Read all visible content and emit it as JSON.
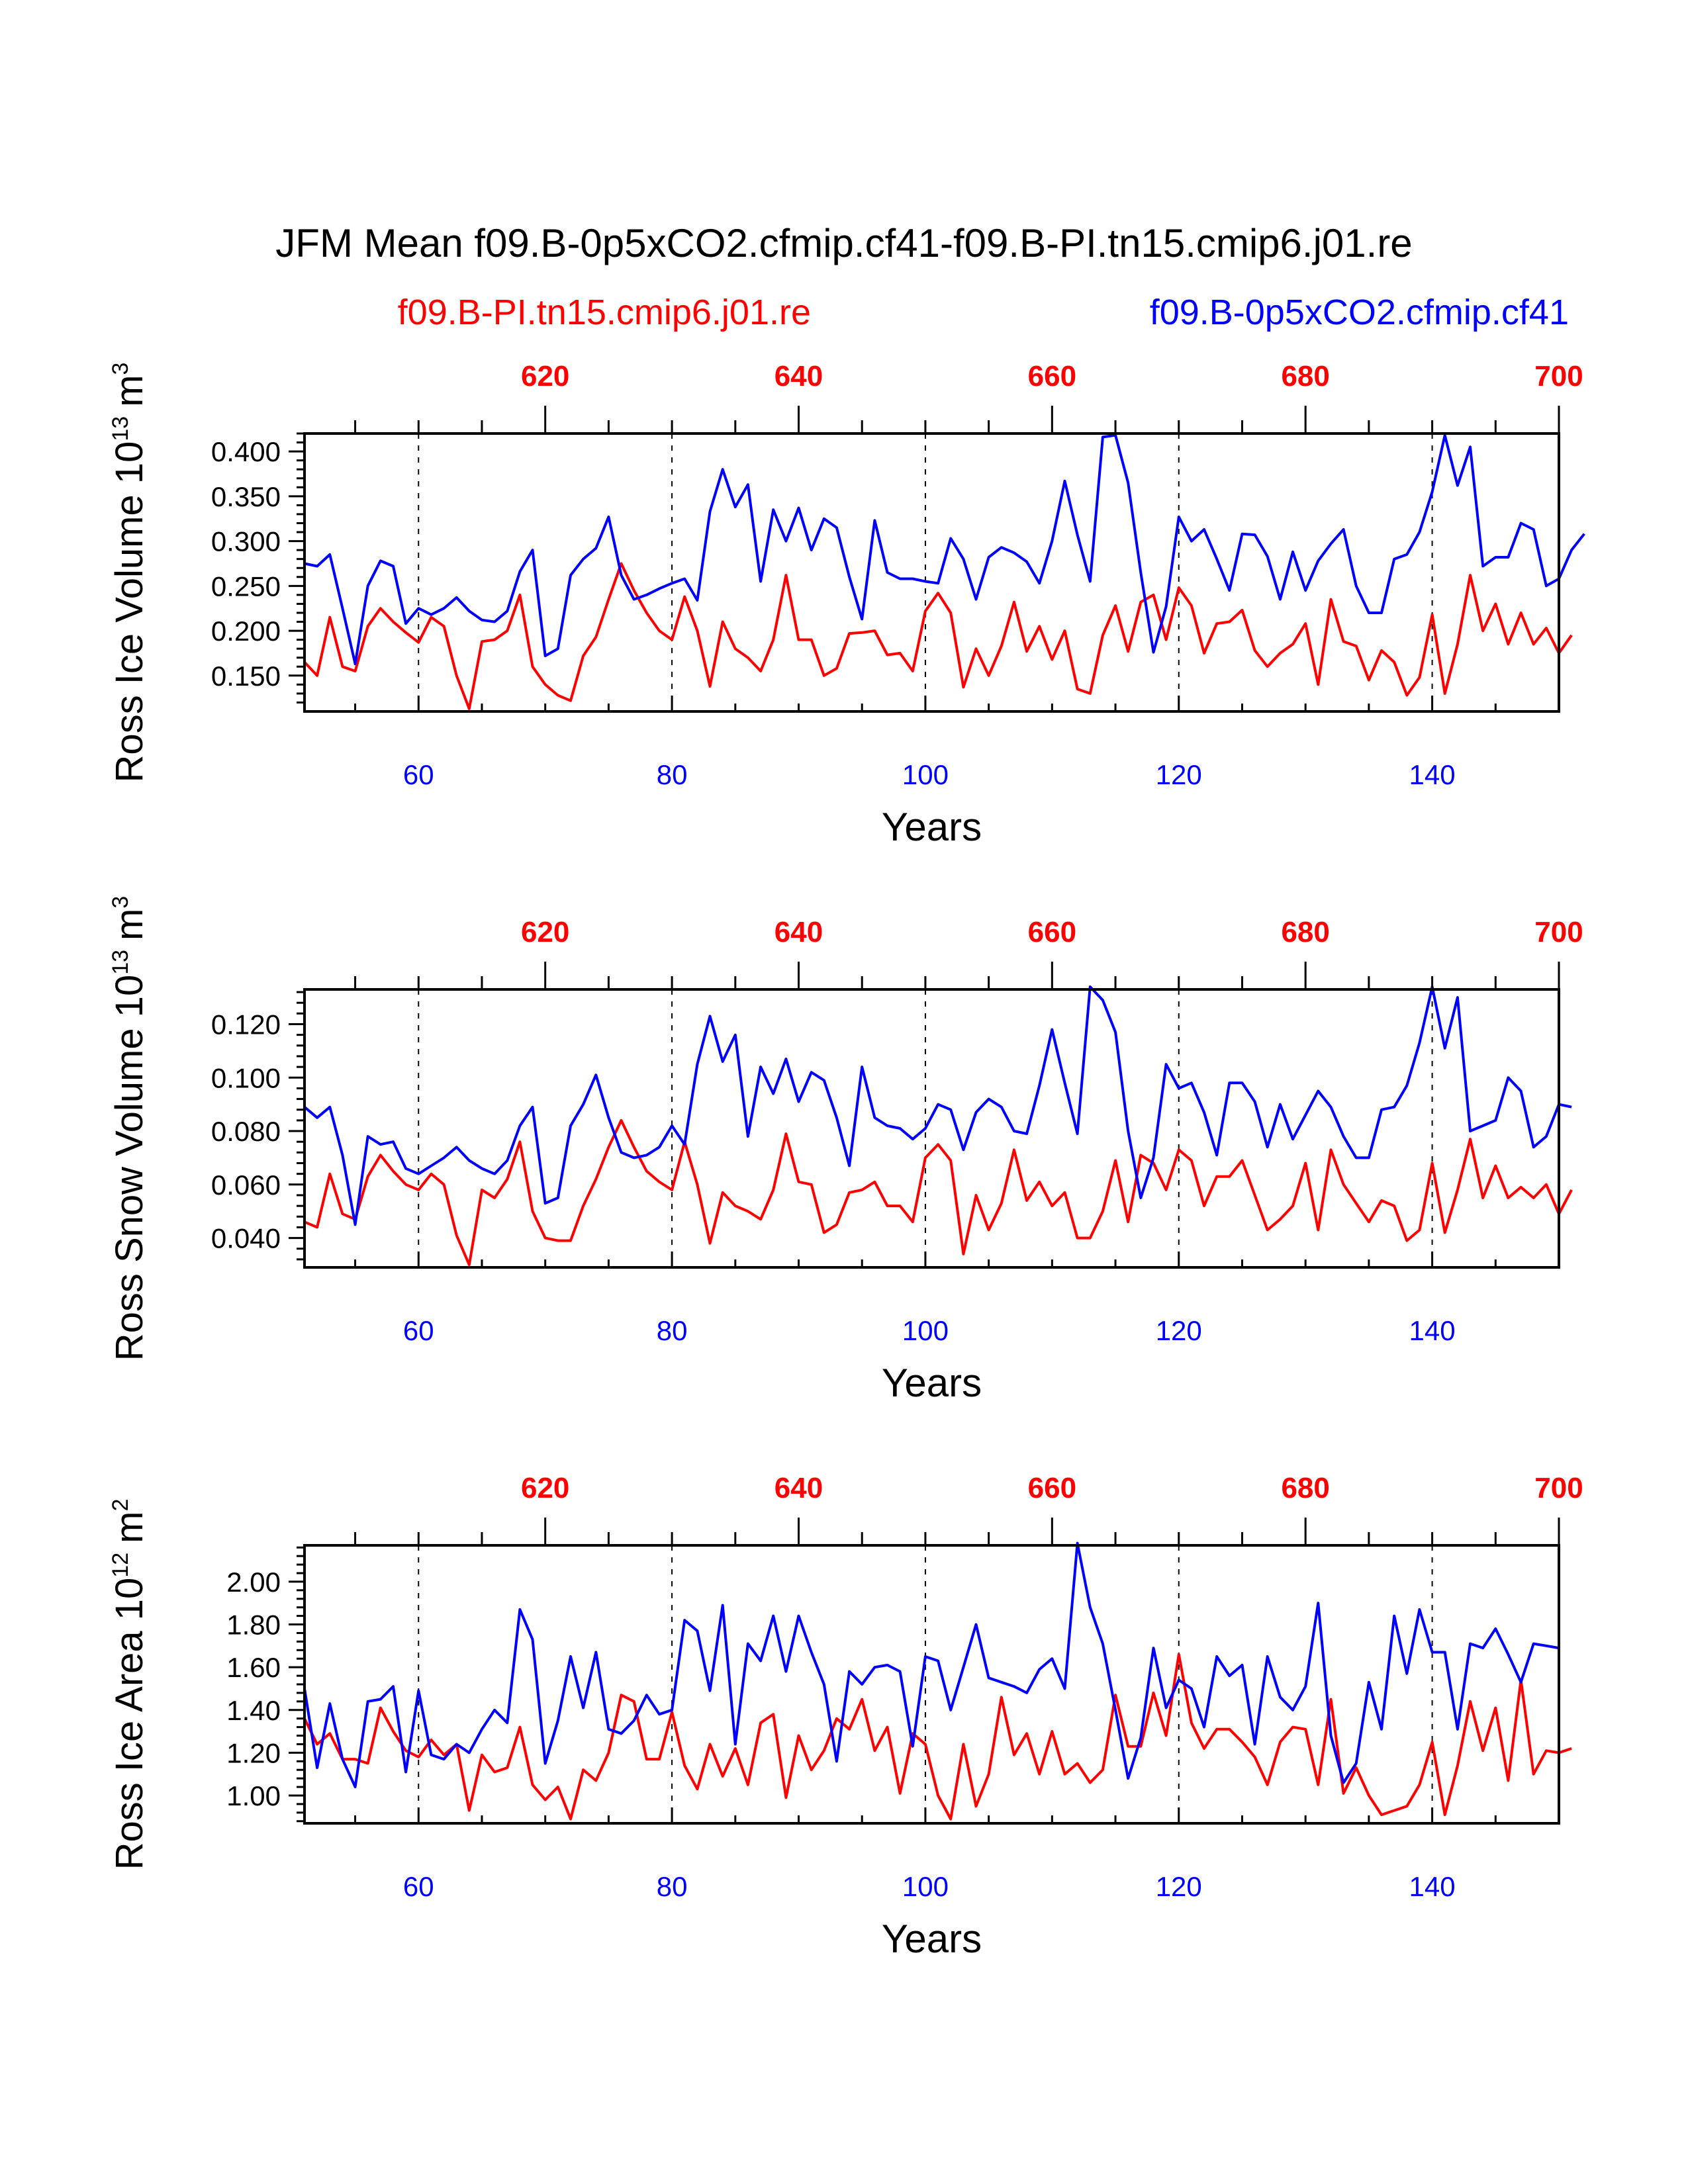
{
  "title": "JFM Mean f09.B-0p5xCO2.cfmip.cf41-f09.B-PI.tn15.cmip6.j01.re",
  "legend": {
    "left": "f09.B-PI.tn15.cmip6.j01.re",
    "right": "f09.B-0p5xCO2.cfmip.cf41"
  },
  "colors": {
    "pi": "#ff0000",
    "co2": "#0000ff",
    "axis": "#000000"
  },
  "chart_data": [
    {
      "type": "line",
      "id": "ice-volume",
      "xlabel": "Years",
      "ylabel": "Ross Ice Volume 10",
      "ylabel_exp": "13",
      "ylabel_unit": "m",
      "ylabel_unit_exp": "3",
      "xlim": [
        51,
        150
      ],
      "ylim": [
        0.11,
        0.42
      ],
      "yticks": [
        0.15,
        0.2,
        0.25,
        0.3,
        0.35,
        0.4
      ],
      "ytick_labels": [
        "0.150",
        "0.200",
        "0.250",
        "0.300",
        "0.350",
        "0.400"
      ],
      "xticks": [
        60,
        80,
        100,
        120,
        140
      ],
      "xtick_labels": [
        "60",
        "80",
        "100",
        "120",
        "140"
      ],
      "top_ticks": [
        610,
        630,
        650,
        670,
        690
      ],
      "top_tick_labels": [
        "620",
        "640",
        "660",
        "680",
        "700"
      ],
      "x_start": 51,
      "series": [
        {
          "name": "f09.B-PI.tn15.cmip6.j01.re",
          "color": "#ff0000",
          "values": [
            0.165,
            0.15,
            0.215,
            0.16,
            0.155,
            0.205,
            0.225,
            0.21,
            0.198,
            0.187,
            0.215,
            0.205,
            0.15,
            0.113,
            0.188,
            0.19,
            0.2,
            0.24,
            0.16,
            0.14,
            0.128,
            0.122,
            0.172,
            0.193,
            0.235,
            0.275,
            0.245,
            0.22,
            0.2,
            0.19,
            0.238,
            0.2,
            0.138,
            0.21,
            0.18,
            0.17,
            0.155,
            0.19,
            0.262,
            0.19,
            0.19,
            0.15,
            0.158,
            0.197,
            0.198,
            0.2,
            0.173,
            0.175,
            0.155,
            0.222,
            0.242,
            0.22,
            0.137,
            0.18,
            0.15,
            0.183,
            0.232,
            0.177,
            0.205,
            0.168,
            0.2,
            0.135,
            0.13,
            0.195,
            0.228,
            0.177,
            0.232,
            0.24,
            0.19,
            0.248,
            0.228,
            0.175,
            0.208,
            0.21,
            0.223,
            0.178,
            0.16,
            0.175,
            0.185,
            0.208,
            0.14,
            0.235,
            0.188,
            0.183,
            0.145,
            0.178,
            0.165,
            0.128,
            0.148,
            0.218,
            0.13,
            0.185,
            0.262,
            0.2,
            0.23,
            0.185,
            0.22,
            0.185,
            0.203,
            0.175,
            0.195
          ]
        },
        {
          "name": "f09.B-0p5xCO2.cfmip.cf41",
          "color": "#0000ff",
          "values": [
            0.275,
            0.272,
            0.285,
            0.225,
            0.163,
            0.25,
            0.278,
            0.272,
            0.208,
            0.225,
            0.218,
            0.225,
            0.237,
            0.222,
            0.212,
            0.21,
            0.222,
            0.266,
            0.29,
            0.172,
            0.18,
            0.262,
            0.28,
            0.292,
            0.327,
            0.262,
            0.235,
            0.24,
            0.247,
            0.253,
            0.258,
            0.234,
            0.333,
            0.38,
            0.338,
            0.363,
            0.255,
            0.335,
            0.3,
            0.337,
            0.29,
            0.325,
            0.315,
            0.26,
            0.213,
            0.323,
            0.265,
            0.258,
            0.258,
            0.255,
            0.253,
            0.303,
            0.28,
            0.235,
            0.282,
            0.293,
            0.287,
            0.277,
            0.253,
            0.3,
            0.367,
            0.307,
            0.255,
            0.416,
            0.418,
            0.365,
            0.265,
            0.176,
            0.227,
            0.327,
            0.3,
            0.313,
            0.28,
            0.245,
            0.308,
            0.307,
            0.283,
            0.235,
            0.288,
            0.245,
            0.278,
            0.297,
            0.313,
            0.25,
            0.22,
            0.22,
            0.28,
            0.285,
            0.31,
            0.355,
            0.418,
            0.362,
            0.405,
            0.272,
            0.282,
            0.282,
            0.32,
            0.313,
            0.25,
            0.258,
            0.29,
            0.308
          ]
        }
      ]
    },
    {
      "type": "line",
      "id": "snow-volume",
      "xlabel": "Years",
      "ylabel": "Ross Snow Volume 10",
      "ylabel_exp": "13",
      "ylabel_unit": "m",
      "ylabel_unit_exp": "3",
      "xlim": [
        51,
        150
      ],
      "ylim": [
        0.029,
        0.133
      ],
      "yticks": [
        0.04,
        0.06,
        0.08,
        0.1,
        0.12
      ],
      "ytick_labels": [
        "0.040",
        "0.060",
        "0.080",
        "0.100",
        "0.120"
      ],
      "xticks": [
        60,
        80,
        100,
        120,
        140
      ],
      "xtick_labels": [
        "60",
        "80",
        "100",
        "120",
        "140"
      ],
      "top_ticks": [
        610,
        630,
        650,
        670,
        690
      ],
      "top_tick_labels": [
        "620",
        "640",
        "660",
        "680",
        "700"
      ],
      "x_start": 51,
      "series": [
        {
          "name": "f09.B-PI.tn15.cmip6.j01.re",
          "color": "#ff0000",
          "values": [
            0.046,
            0.044,
            0.064,
            0.049,
            0.047,
            0.063,
            0.071,
            0.065,
            0.06,
            0.058,
            0.064,
            0.06,
            0.041,
            0.03,
            0.058,
            0.055,
            0.062,
            0.076,
            0.05,
            0.04,
            0.039,
            0.039,
            0.052,
            0.062,
            0.074,
            0.084,
            0.074,
            0.065,
            0.061,
            0.058,
            0.076,
            0.06,
            0.038,
            0.057,
            0.052,
            0.05,
            0.047,
            0.058,
            0.079,
            0.061,
            0.06,
            0.042,
            0.045,
            0.057,
            0.058,
            0.061,
            0.052,
            0.052,
            0.046,
            0.07,
            0.075,
            0.069,
            0.034,
            0.056,
            0.043,
            0.053,
            0.073,
            0.054,
            0.061,
            0.052,
            0.057,
            0.04,
            0.04,
            0.05,
            0.069,
            0.046,
            0.071,
            0.068,
            0.058,
            0.073,
            0.069,
            0.052,
            0.063,
            0.063,
            0.069,
            0.056,
            0.043,
            0.047,
            0.052,
            0.068,
            0.043,
            0.073,
            0.06,
            0.053,
            0.046,
            0.054,
            0.052,
            0.039,
            0.043,
            0.068,
            0.042,
            0.058,
            0.077,
            0.055,
            0.067,
            0.055,
            0.059,
            0.055,
            0.06,
            0.049,
            0.058
          ]
        },
        {
          "name": "f09.B-0p5xCO2.cfmip.cf41",
          "color": "#0000ff",
          "values": [
            0.089,
            0.085,
            0.089,
            0.071,
            0.045,
            0.078,
            0.075,
            0.076,
            0.066,
            0.064,
            0.067,
            0.07,
            0.074,
            0.069,
            0.066,
            0.064,
            0.069,
            0.082,
            0.089,
            0.053,
            0.055,
            0.082,
            0.09,
            0.101,
            0.085,
            0.072,
            0.07,
            0.071,
            0.074,
            0.082,
            0.075,
            0.105,
            0.123,
            0.106,
            0.116,
            0.078,
            0.104,
            0.094,
            0.107,
            0.091,
            0.102,
            0.099,
            0.085,
            0.067,
            0.104,
            0.085,
            0.082,
            0.081,
            0.077,
            0.081,
            0.09,
            0.088,
            0.073,
            0.087,
            0.092,
            0.089,
            0.08,
            0.079,
            0.097,
            0.118,
            0.098,
            0.079,
            0.134,
            0.129,
            0.117,
            0.08,
            0.055,
            0.07,
            0.105,
            0.096,
            0.098,
            0.087,
            0.071,
            0.098,
            0.098,
            0.091,
            0.074,
            0.09,
            0.077,
            0.086,
            0.095,
            0.089,
            0.078,
            0.07,
            0.07,
            0.088,
            0.089,
            0.097,
            0.113,
            0.134,
            0.111,
            0.13,
            0.08,
            0.082,
            0.084,
            0.1,
            0.095,
            0.074,
            0.078,
            0.09,
            0.089
          ]
        }
      ]
    },
    {
      "type": "line",
      "id": "ice-area",
      "xlabel": "Years",
      "ylabel": "Ross Ice Area 10",
      "ylabel_exp": "12",
      "ylabel_unit": "m",
      "ylabel_unit_exp": "2",
      "xlim": [
        51,
        150
      ],
      "ylim": [
        0.87,
        2.17
      ],
      "yticks": [
        1.0,
        1.2,
        1.4,
        1.6,
        1.8,
        2.0
      ],
      "ytick_labels": [
        "1.00",
        "1.20",
        "1.40",
        "1.60",
        "1.80",
        "2.00"
      ],
      "xticks": [
        60,
        80,
        100,
        120,
        140
      ],
      "xtick_labels": [
        "60",
        "80",
        "100",
        "120",
        "140"
      ],
      "top_ticks": [
        610,
        630,
        650,
        670,
        690
      ],
      "top_tick_labels": [
        "620",
        "640",
        "660",
        "680",
        "700"
      ],
      "x_start": 51,
      "series": [
        {
          "name": "f09.B-PI.tn15.cmip6.j01.re",
          "color": "#ff0000",
          "values": [
            1.36,
            1.24,
            1.29,
            1.17,
            1.17,
            1.15,
            1.41,
            1.3,
            1.21,
            1.18,
            1.26,
            1.19,
            1.24,
            0.93,
            1.19,
            1.11,
            1.13,
            1.32,
            1.05,
            0.98,
            1.04,
            0.89,
            1.12,
            1.07,
            1.2,
            1.47,
            1.44,
            1.17,
            1.17,
            1.39,
            1.14,
            1.03,
            1.24,
            1.09,
            1.22,
            1.05,
            1.34,
            1.38,
            0.99,
            1.28,
            1.12,
            1.21,
            1.36,
            1.31,
            1.45,
            1.21,
            1.32,
            1.01,
            1.29,
            1.24,
            1.0,
            0.89,
            1.24,
            0.95,
            1.1,
            1.46,
            1.19,
            1.29,
            1.1,
            1.3,
            1.1,
            1.15,
            1.06,
            1.12,
            1.47,
            1.23,
            1.23,
            1.48,
            1.28,
            1.66,
            1.34,
            1.22,
            1.31,
            1.31,
            1.25,
            1.18,
            1.05,
            1.25,
            1.32,
            1.31,
            1.05,
            1.45,
            1.01,
            1.13,
            1.0,
            0.91,
            0.93,
            0.95,
            1.05,
            1.25,
            0.91,
            1.14,
            1.44,
            1.21,
            1.41,
            1.07,
            1.54,
            1.1,
            1.21,
            1.2,
            1.22
          ]
        },
        {
          "name": "f09.B-0p5xCO2.cfmip.cf41",
          "color": "#0000ff",
          "values": [
            1.5,
            1.13,
            1.43,
            1.17,
            1.04,
            1.44,
            1.45,
            1.51,
            1.11,
            1.49,
            1.19,
            1.17,
            1.24,
            1.2,
            1.31,
            1.4,
            1.34,
            1.87,
            1.73,
            1.15,
            1.35,
            1.65,
            1.41,
            1.67,
            1.31,
            1.29,
            1.35,
            1.47,
            1.38,
            1.4,
            1.82,
            1.77,
            1.49,
            1.89,
            1.24,
            1.71,
            1.63,
            1.84,
            1.58,
            1.84,
            1.67,
            1.52,
            1.16,
            1.58,
            1.52,
            1.6,
            1.61,
            1.58,
            1.23,
            1.65,
            1.63,
            1.4,
            1.6,
            1.8,
            1.55,
            1.53,
            1.51,
            1.48,
            1.59,
            1.64,
            1.5,
            2.18,
            1.88,
            1.71,
            1.4,
            1.08,
            1.27,
            1.69,
            1.41,
            1.54,
            1.5,
            1.32,
            1.65,
            1.56,
            1.61,
            1.24,
            1.65,
            1.46,
            1.4,
            1.51,
            1.9,
            1.28,
            1.06,
            1.15,
            1.53,
            1.31,
            1.84,
            1.57,
            1.87,
            1.67,
            1.67,
            1.31,
            1.71,
            1.69,
            1.78,
            1.66,
            1.53,
            1.71,
            1.7,
            1.69
          ]
        }
      ]
    }
  ]
}
